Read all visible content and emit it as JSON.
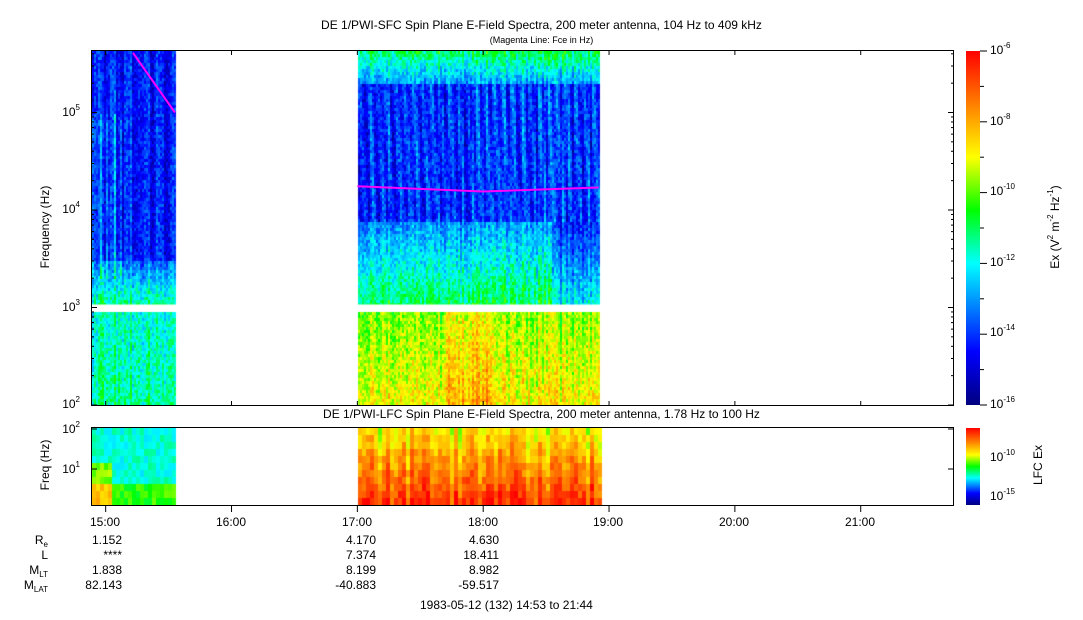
{
  "chart_data": [
    {
      "type": "heatmap",
      "title": "DE 1/PWI-SFC  Spin Plane E-Field Spectra, 200 meter antenna, 104 Hz to 409 kHz",
      "subtitle": "(Magenta Line: Fce in Hz)",
      "ylabel": "Frequency (Hz)",
      "yscale": "log",
      "ylim": [
        104,
        409000
      ],
      "yticks": [
        {
          "base": "10",
          "exp": "2"
        },
        {
          "base": "10",
          "exp": "3"
        },
        {
          "base": "10",
          "exp": "4"
        },
        {
          "base": "10",
          "exp": "5"
        }
      ],
      "xlim": [
        "14:53",
        "21:44"
      ],
      "data_intervals": [
        [
          "14:53",
          "15:33"
        ],
        [
          "17:00",
          "18:55"
        ]
      ],
      "data_gap_frequency_hz": 1000,
      "fce_line": {
        "color": "#ff00ff",
        "points": [
          {
            "t": "15:13",
            "hz": 409000
          },
          {
            "t": "15:33",
            "hz": 100000
          },
          {
            "t": "17:00",
            "hz": 17500
          },
          {
            "t": "18:00",
            "hz": 15500
          },
          {
            "t": "18:55",
            "hz": 17000
          }
        ]
      },
      "colorbar": {
        "label": "Ex (V2 m-2 Hz-1)",
        "label_main": "Ex (V",
        "label_sup1": "2",
        "label_mid": " m",
        "label_sup2": "-2",
        "label_hz": " Hz",
        "label_sup3": "-1",
        "label_end": ")",
        "scale": "log",
        "range": [
          1e-16,
          1e-06
        ],
        "ticks": [
          {
            "base": "10",
            "exp": "-6"
          },
          {
            "base": "10",
            "exp": "-8"
          },
          {
            "base": "10",
            "exp": "-10"
          },
          {
            "base": "10",
            "exp": "-12"
          },
          {
            "base": "10",
            "exp": "-14"
          },
          {
            "base": "10",
            "exp": "-16"
          }
        ],
        "colormap": [
          "#00007f",
          "#0000ff",
          "#00ffff",
          "#00ff00",
          "#ffff00",
          "#ff7f00",
          "#ff0000"
        ]
      }
    },
    {
      "type": "heatmap",
      "title": "DE 1/PWI-LFC  Spin Plane E-Field Spectra, 200 meter antenna, 1.78 Hz to 100 Hz",
      "ylabel": "Freq (Hz)",
      "yscale": "log",
      "ylim": [
        1.78,
        100
      ],
      "yticks": [
        {
          "base": "10",
          "exp": "1"
        },
        {
          "base": "10",
          "exp": "2"
        }
      ],
      "xlim": [
        "14:53",
        "21:44"
      ],
      "data_intervals": [
        [
          "14:53",
          "15:33"
        ],
        [
          "17:00",
          "18:55"
        ]
      ],
      "colorbar": {
        "label": "LFC Ex",
        "scale": "log",
        "range": [
          1e-16,
          1e-07
        ],
        "ticks": [
          {
            "base": "10",
            "exp": "-10"
          },
          {
            "base": "10",
            "exp": "-15"
          }
        ]
      }
    }
  ],
  "xaxis": {
    "ticks": [
      "15:00",
      "16:00",
      "17:00",
      "18:00",
      "19:00",
      "20:00",
      "21:00"
    ]
  },
  "ephemeris": {
    "labels": [
      {
        "main": "R",
        "sub": "e"
      },
      {
        "main": "L",
        "sub": ""
      },
      {
        "main": "M",
        "sub": "LT"
      },
      {
        "main": "M",
        "sub": "LAT"
      }
    ],
    "columns": [
      {
        "time": "15:00",
        "values": [
          "1.152",
          "****",
          "1.838",
          "82.143"
        ]
      },
      {
        "time": "17:00",
        "values": [
          "4.170",
          "7.374",
          "8.199",
          "-40.883"
        ]
      },
      {
        "time": "18:00",
        "values": [
          "4.630",
          "18.411",
          "8.982",
          "-59.517"
        ]
      }
    ]
  },
  "footer": "1983-05-12 (132) 14:53 to 21:44"
}
